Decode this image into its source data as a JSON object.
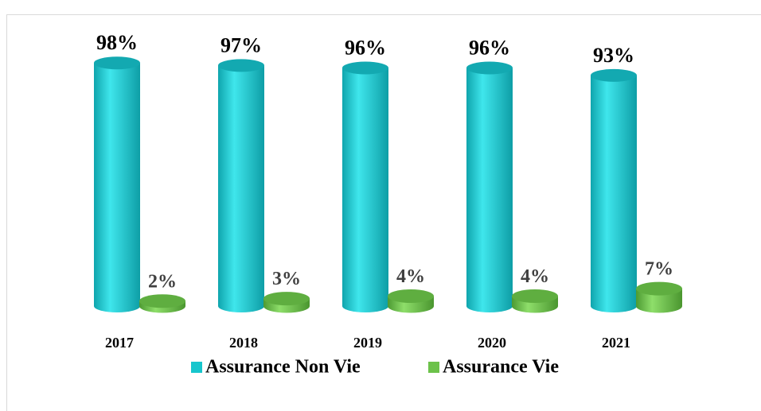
{
  "chart_data": {
    "type": "bar",
    "categories": [
      "2017",
      "2018",
      "2019",
      "2020",
      "2021"
    ],
    "series": [
      {
        "name": "Assurance Non Vie",
        "color": "#17c6cd",
        "values": [
          98,
          97,
          96,
          96,
          93
        ],
        "value_labels": [
          "98%",
          "97%",
          "96%",
          "96%",
          "93%"
        ]
      },
      {
        "name": "Assurance Vie",
        "color": "#6cc24a",
        "values": [
          2,
          3,
          4,
          4,
          7
        ],
        "value_labels": [
          "2%",
          "3%",
          "4%",
          "4%",
          "7%"
        ]
      }
    ],
    "legend": "bottom"
  }
}
